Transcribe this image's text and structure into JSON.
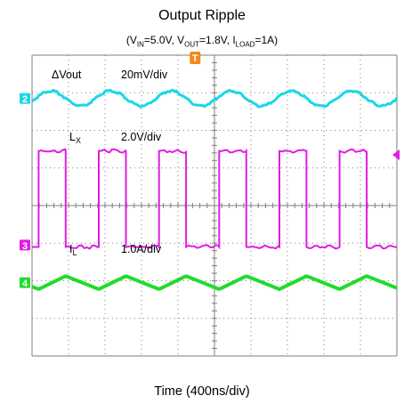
{
  "chart_data": {
    "type": "line",
    "title": "Output Ripple",
    "subtitle": {
      "vin_sym": "V",
      "vin_sub": "IN",
      "vin_val": "=5.0V, ",
      "vout_sym": "V",
      "vout_sub": "OUT",
      "vout_val": "=1.8V, ",
      "iload_sym": "I",
      "iload_sub": "LOAD",
      "iload_val": "=1A"
    },
    "xlabel": "Time (400ns/div)",
    "ylabel": "",
    "x_divisions": 10,
    "y_divisions": 8,
    "trigger_marker": "T",
    "colors": {
      "ch2": "#18d8e6",
      "ch3": "#e21ce2",
      "ch4": "#20dc2c",
      "grid": "#7f7f7f"
    },
    "channels": [
      {
        "marker": "2",
        "name_sym": "ΔVout",
        "name_sub": "",
        "scale": "20mV/div",
        "waveform": "sine",
        "period_div": 1.65,
        "phase_div": 0.1,
        "ripple_div": 0.2
      },
      {
        "marker": "3",
        "name_sym": "L",
        "name_sub": "X",
        "scale": "2.0V/div",
        "waveform": "square",
        "period_div": 1.65,
        "duty": 0.45,
        "high_div": 2.5,
        "low_div": -0.05
      },
      {
        "marker": "4",
        "name_sym": "I",
        "name_sub": "L",
        "scale": "1.0A/div",
        "waveform": "triangle",
        "period_div": 1.65,
        "peak_peak_div": 0.35
      }
    ]
  }
}
